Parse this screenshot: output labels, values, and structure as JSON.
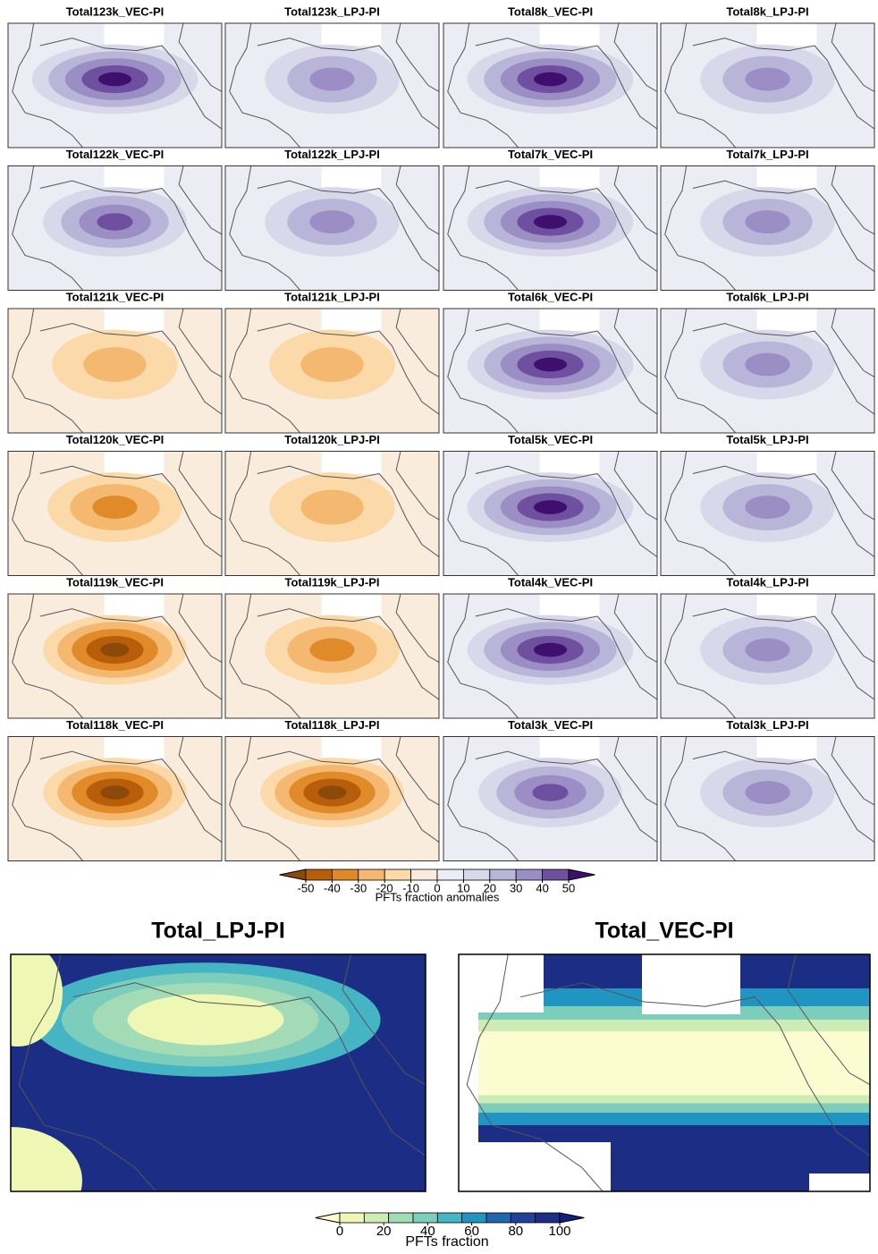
{
  "panels": [
    {
      "title": "Total123k_VEC-PI"
    },
    {
      "title": "Total123k_LPJ-PI"
    },
    {
      "title": "Total8k_VEC-PI"
    },
    {
      "title": "Total8k_LPJ-PI"
    },
    {
      "title": "Total122k_VEC-PI"
    },
    {
      "title": "Total122k_LPJ-PI"
    },
    {
      "title": "Total7k_VEC-PI"
    },
    {
      "title": "Total7k_LPJ-PI"
    },
    {
      "title": "Total121k_VEC-PI"
    },
    {
      "title": "Total121k_LPJ-PI"
    },
    {
      "title": "Total6k_VEC-PI"
    },
    {
      "title": "Total6k_LPJ-PI"
    },
    {
      "title": "Total120k_VEC-PI"
    },
    {
      "title": "Total120k_LPJ-PI"
    },
    {
      "title": "Total5k_VEC-PI"
    },
    {
      "title": "Total5k_LPJ-PI"
    },
    {
      "title": "Total119k_VEC-PI"
    },
    {
      "title": "Total119k_LPJ-PI"
    },
    {
      "title": "Total4k_VEC-PI"
    },
    {
      "title": "Total4k_LPJ-PI"
    },
    {
      "title": "Total118k_VEC-PI"
    },
    {
      "title": "Total118k_LPJ-PI"
    },
    {
      "title": "Total3k_VEC-PI"
    },
    {
      "title": "Total3k_LPJ-PI"
    }
  ],
  "colorbar_top": {
    "label": "PFTs fraction anomalies",
    "ticks": [
      -50,
      -40,
      -30,
      -20,
      -10,
      0,
      10,
      20,
      30,
      40,
      50
    ],
    "colors": [
      "#8c4a0a",
      "#b85e0a",
      "#e08a2a",
      "#f5b870",
      "#fbd9a8",
      "#f9ecdc",
      "#ececf4",
      "#d8d8ea",
      "#b9b5d9",
      "#9a8ec4",
      "#6f4fa0",
      "#3f0f6e"
    ]
  },
  "maps": [
    {
      "title": "Total_LPJ-PI"
    },
    {
      "title": "Total_VEC-PI"
    }
  ],
  "colorbar_bottom": {
    "label": "PFTs fraction",
    "ticks": [
      0,
      20,
      40,
      60,
      80,
      100
    ],
    "colors": [
      "#fbfdd0",
      "#eef8b4",
      "#cdebb5",
      "#a3dbb7",
      "#7ccdbb",
      "#45b5c4",
      "#2195c1",
      "#2066ad",
      "#22409a",
      "#1c2d86",
      "#11207a"
    ]
  }
}
